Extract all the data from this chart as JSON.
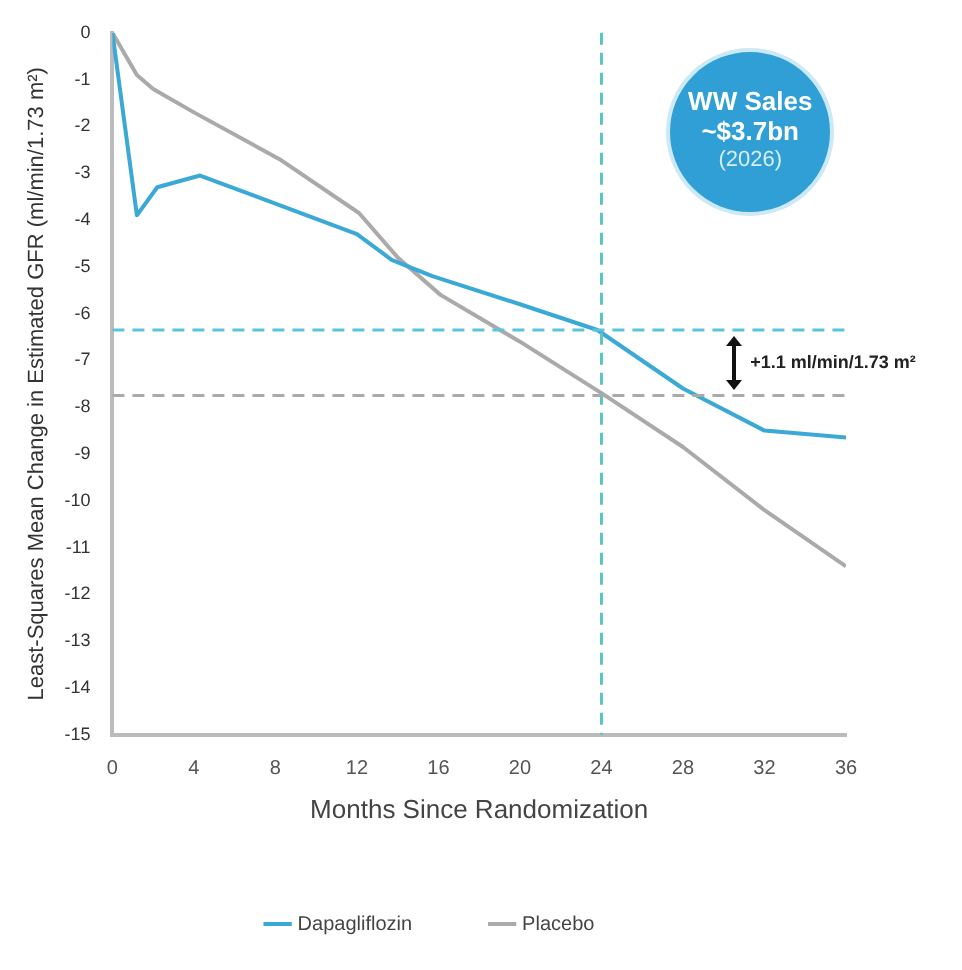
{
  "chart_data": {
    "type": "line",
    "xlabel": "Months Since Randomization",
    "ylabel": "Least-Squares Mean Change in Estimated GFR (ml/min/1.73 m²)",
    "xlim": [
      0,
      36
    ],
    "xticks": [
      0,
      4,
      8,
      12,
      16,
      20,
      24,
      28,
      32,
      36
    ],
    "ylim": [
      -15,
      0
    ],
    "yticks": [
      -15,
      -14,
      -13,
      -12,
      -11,
      -10,
      -9,
      -8,
      -7,
      -6,
      -5,
      -4,
      -3,
      -2,
      -1,
      0
    ],
    "grid": false,
    "legend": "bottom",
    "marker": "none",
    "line_style": "solid",
    "series": [
      {
        "name": "Dapagliflozin",
        "color": "#3ba9d6",
        "x": [
          0,
          1.2,
          2.2,
          4.3,
          12,
          13.7,
          15.7,
          20,
          23.8,
          28,
          32,
          36
        ],
        "values": [
          0,
          -3.9,
          -3.3,
          -3.05,
          -4.3,
          -4.85,
          -5.2,
          -5.8,
          -6.35,
          -7.6,
          -8.5,
          -8.65
        ]
      },
      {
        "name": "Placebo",
        "color": "#aaaaaa",
        "x": [
          0,
          1.2,
          2,
          4,
          8.2,
          12.1,
          14,
          16.1,
          20,
          24,
          28,
          32,
          36
        ],
        "values": [
          0,
          -0.9,
          -1.2,
          -1.7,
          -2.7,
          -3.85,
          -4.8,
          -5.6,
          -6.6,
          -7.7,
          -8.85,
          -10.2,
          -11.4
        ]
      }
    ],
    "ref_lines": [
      {
        "axis": "x",
        "value": 24,
        "color": "#5cc4c4",
        "line_style": "dashed"
      },
      {
        "axis": "y",
        "value": -6.35,
        "color": "#5cc4d8",
        "line_style": "dashed"
      },
      {
        "axis": "y",
        "value": -7.75,
        "color": "#aaaaaa",
        "line_style": "dashed"
      }
    ],
    "annotations": [
      "WW Sales",
      "~$3.7bn",
      "(2026)",
      "+1.1 ml/min/1.73 m²"
    ]
  }
}
